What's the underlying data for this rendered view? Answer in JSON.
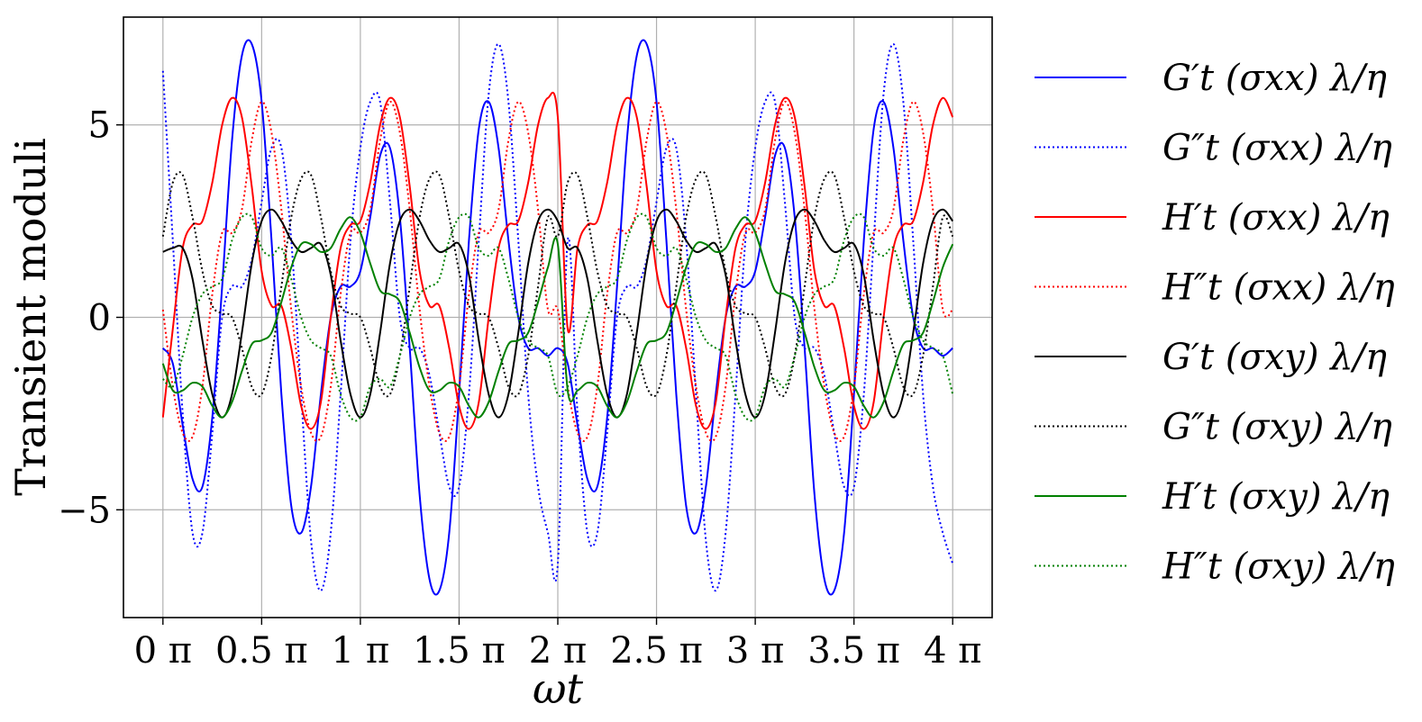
{
  "chart_data": {
    "type": "line",
    "xlabel": "ωt",
    "ylabel": "Transient moduli",
    "xlim": [
      0,
      4
    ],
    "ylim": [
      -7.8,
      7.8
    ],
    "x_unit": "π",
    "x_ticks": [
      0,
      0.5,
      1,
      1.5,
      2,
      2.5,
      3,
      3.5,
      4
    ],
    "x_tick_labels": [
      "0 π",
      "0.5 π",
      "1 π",
      "1.5 π",
      "2 π",
      "2.5 π",
      "3 π",
      "3.5 π",
      "4 π"
    ],
    "y_ticks": [
      -5,
      0,
      5
    ],
    "y_tick_labels": [
      "−5",
      "0",
      "5"
    ],
    "grid": true,
    "legend_position": "outside-right",
    "series": [
      {
        "name": "G′t (σxx) λ/η",
        "color": "#0000ff",
        "style": "solid",
        "x": [
          0,
          0.05,
          0.1,
          0.15,
          0.2,
          0.25,
          0.3,
          0.35,
          0.4,
          0.45,
          0.5,
          0.55,
          0.6,
          0.65,
          0.7,
          0.75,
          0.8,
          0.85,
          0.9,
          0.95,
          1.0,
          1.05,
          1.1,
          1.15,
          1.2,
          1.25,
          1.3,
          1.35,
          1.4,
          1.45,
          1.5,
          1.55,
          1.6,
          1.65,
          1.7,
          1.75,
          1.8,
          1.85,
          1.9,
          1.95,
          2.0
        ],
        "y": [
          -0.8,
          -1.2,
          -2.8,
          -4.2,
          -4.4,
          -2.6,
          0.8,
          4.6,
          6.8,
          7.1,
          5.6,
          2.0,
          -2.0,
          -4.9,
          -5.6,
          -4.4,
          -2.0,
          0.0,
          0.8,
          0.8,
          1.2,
          2.6,
          4.2,
          4.4,
          2.6,
          -0.8,
          -4.6,
          -6.8,
          -7.1,
          -5.6,
          -2.0,
          2.0,
          4.9,
          5.6,
          4.4,
          2.0,
          0.0,
          -0.8,
          -0.8,
          -1.0,
          -0.8
        ]
      },
      {
        "name": "G″t (σxx) λ/η",
        "color": "#0000ff",
        "style": "dotted",
        "x": [
          0,
          0.05,
          0.1,
          0.15,
          0.2,
          0.25,
          0.3,
          0.35,
          0.4,
          0.45,
          0.5,
          0.55,
          0.6,
          0.65,
          0.7,
          0.75,
          0.8,
          0.85,
          0.9,
          0.95,
          1.0,
          1.05,
          1.1,
          1.15,
          1.2,
          1.25,
          1.3,
          1.35,
          1.4,
          1.45,
          1.5,
          1.55,
          1.6,
          1.65,
          1.7,
          1.75,
          1.8,
          1.85,
          1.9,
          1.95,
          2.0
        ],
        "y": [
          6.4,
          2.0,
          -2.5,
          -5.6,
          -5.6,
          -3.0,
          0.0,
          0.8,
          0.8,
          1.5,
          3.0,
          4.4,
          4.4,
          2.0,
          -2.0,
          -5.8,
          -7.1,
          -5.6,
          -2.0,
          2.0,
          4.4,
          5.6,
          5.6,
          3.0,
          0.0,
          -0.8,
          -0.8,
          -1.5,
          -3.0,
          -4.4,
          -4.4,
          -2.0,
          2.0,
          5.8,
          7.1,
          5.6,
          2.0,
          -2.0,
          -4.4,
          -5.6,
          -6.4
        ]
      },
      {
        "name": "H′t (σxx) λ/η",
        "color": "#ff0000",
        "style": "solid",
        "x": [
          0,
          0.05,
          0.1,
          0.15,
          0.2,
          0.25,
          0.3,
          0.35,
          0.4,
          0.45,
          0.5,
          0.55,
          0.6,
          0.65,
          0.7,
          0.75,
          0.8,
          0.85,
          0.9,
          0.95,
          1.0,
          1.05,
          1.1,
          1.15,
          1.2,
          1.25,
          1.3,
          1.35,
          1.4,
          1.45,
          1.5,
          1.55,
          1.6,
          1.65,
          1.7,
          1.75,
          1.8,
          1.85,
          1.9,
          1.95,
          2.0
        ],
        "y": [
          -2.6,
          -0.3,
          1.8,
          2.4,
          2.5,
          3.5,
          5.0,
          5.7,
          5.2,
          3.4,
          1.2,
          0.3,
          0.3,
          -0.8,
          -2.3,
          -2.9,
          -2.2,
          0.0,
          1.8,
          2.4,
          2.5,
          3.5,
          5.0,
          5.7,
          5.2,
          3.4,
          1.2,
          0.3,
          0.3,
          -0.8,
          -2.3,
          -2.9,
          -2.2,
          0.0,
          1.8,
          2.4,
          2.5,
          3.5,
          5.0,
          5.7,
          5.2
        ]
      },
      {
        "name": "H″t (σxx) λ/η",
        "color": "#ff0000",
        "style": "dotted",
        "x": [
          0,
          0.05,
          0.1,
          0.15,
          0.2,
          0.25,
          0.3,
          0.35,
          0.4,
          0.45,
          0.5,
          0.55,
          0.6,
          0.65,
          0.7,
          0.75,
          0.8,
          0.85,
          0.9,
          0.95,
          1.0,
          1.05,
          1.1,
          1.15,
          1.2,
          1.25,
          1.3,
          1.35,
          1.4,
          1.45,
          1.5,
          1.55,
          1.6,
          1.65,
          1.7,
          1.75,
          1.8,
          1.85,
          1.9,
          1.95,
          2.0
        ],
        "y": [
          0.2,
          -1.8,
          -3.0,
          -3.1,
          -1.8,
          0.6,
          2.2,
          2.2,
          2.8,
          4.6,
          5.6,
          4.8,
          2.8,
          0.2,
          -1.8,
          -3.0,
          -3.1,
          -1.8,
          0.6,
          2.2,
          2.2,
          2.8,
          4.6,
          5.6,
          4.8,
          2.8,
          0.2,
          -1.8,
          -3.0,
          -3.1,
          -1.8,
          0.6,
          2.2,
          2.2,
          2.8,
          4.6,
          5.6,
          4.8,
          2.8,
          0.2,
          0.2
        ]
      },
      {
        "name": "G′t (σxy) λ/η",
        "color": "#000000",
        "style": "solid",
        "x": [
          0,
          0.05,
          0.1,
          0.15,
          0.2,
          0.25,
          0.3,
          0.35,
          0.4,
          0.45,
          0.5,
          0.55,
          0.6,
          0.65,
          0.7,
          0.75,
          0.8,
          0.85,
          0.9,
          0.95,
          1.0,
          1.05,
          1.1,
          1.15,
          1.2,
          1.25,
          1.3,
          1.35,
          1.4,
          1.45,
          1.5,
          1.55,
          1.6,
          1.65,
          1.7,
          1.75,
          1.8,
          1.85,
          1.9,
          1.95,
          2.0
        ],
        "y": [
          1.7,
          1.8,
          1.8,
          1.0,
          -0.6,
          -2.0,
          -2.6,
          -2.0,
          -0.4,
          1.4,
          2.5,
          2.8,
          2.5,
          2.0,
          1.7,
          1.8,
          1.9,
          1.1,
          -0.6,
          -2.0,
          -2.6,
          -2.0,
          -0.4,
          1.4,
          2.5,
          2.8,
          2.5,
          2.0,
          1.7,
          1.8,
          1.9,
          1.1,
          -0.6,
          -2.0,
          -2.6,
          -2.0,
          -0.4,
          1.4,
          2.5,
          2.8,
          2.5
        ]
      },
      {
        "name": "G″t (σxy) λ/η",
        "color": "#000000",
        "style": "dotted",
        "x": [
          0,
          0.05,
          0.1,
          0.15,
          0.2,
          0.25,
          0.3,
          0.35,
          0.4,
          0.45,
          0.5,
          0.55,
          0.6,
          0.65,
          0.7,
          0.75,
          0.8,
          0.85,
          0.9,
          0.95,
          1.0,
          1.05,
          1.1,
          1.15,
          1.2,
          1.25,
          1.3,
          1.35,
          1.4,
          1.45,
          1.5,
          1.55,
          1.6,
          1.65,
          1.7,
          1.75,
          1.8,
          1.85,
          1.9,
          1.95,
          2.0
        ],
        "y": [
          2.1,
          3.5,
          3.7,
          2.6,
          1.2,
          0.3,
          0.1,
          0.0,
          -0.8,
          -1.8,
          -2.0,
          -1.0,
          0.8,
          2.6,
          3.6,
          3.7,
          2.6,
          1.2,
          0.3,
          0.1,
          0.0,
          -0.8,
          -1.8,
          -2.0,
          -1.0,
          0.8,
          2.6,
          3.6,
          3.7,
          2.6,
          1.2,
          0.3,
          0.1,
          0.0,
          -0.8,
          -1.8,
          -2.0,
          -1.0,
          0.8,
          2.6,
          2.1
        ]
      },
      {
        "name": "H′t (σxy) λ/η",
        "color": "#008000",
        "style": "solid",
        "x": [
          0,
          0.05,
          0.1,
          0.15,
          0.2,
          0.25,
          0.3,
          0.35,
          0.4,
          0.45,
          0.5,
          0.55,
          0.6,
          0.65,
          0.7,
          0.75,
          0.8,
          0.85,
          0.9,
          0.95,
          1.0,
          1.05,
          1.1,
          1.15,
          1.2,
          1.25,
          1.3,
          1.35,
          1.4,
          1.45,
          1.5,
          1.55,
          1.6,
          1.65,
          1.7,
          1.75,
          1.8,
          1.85,
          1.9,
          1.95,
          2.0
        ],
        "y": [
          -1.2,
          -1.9,
          -1.9,
          -1.7,
          -1.8,
          -2.3,
          -2.6,
          -2.2,
          -1.4,
          -0.7,
          -0.6,
          -0.4,
          0.4,
          1.3,
          1.9,
          1.9,
          1.7,
          1.8,
          2.3,
          2.6,
          2.2,
          1.4,
          0.7,
          0.6,
          0.4,
          -0.4,
          -1.3,
          -1.9,
          -1.9,
          -1.7,
          -1.8,
          -2.3,
          -2.6,
          -2.2,
          -1.4,
          -0.7,
          -0.6,
          -0.4,
          0.4,
          1.3,
          1.9
        ]
      },
      {
        "name": "H″t (σxy) λ/η",
        "color": "#008000",
        "style": "dotted",
        "x": [
          0,
          0.05,
          0.1,
          0.15,
          0.2,
          0.25,
          0.3,
          0.35,
          0.4,
          0.45,
          0.5,
          0.55,
          0.6,
          0.65,
          0.7,
          0.75,
          0.8,
          0.85,
          0.9,
          0.95,
          1.0,
          1.05,
          1.1,
          1.15,
          1.2,
          1.25,
          1.3,
          1.35,
          1.4,
          1.45,
          1.5,
          1.55,
          1.6,
          1.65,
          1.7,
          1.75,
          1.8,
          1.85,
          1.9,
          1.95,
          2.0
        ],
        "y": [
          -1.6,
          -1.8,
          -1.0,
          0.0,
          0.6,
          0.8,
          1.0,
          2.0,
          2.6,
          2.6,
          1.8,
          1.6,
          1.8,
          1.0,
          0.0,
          -0.6,
          -0.8,
          -1.0,
          -2.0,
          -2.6,
          -2.6,
          -1.8,
          -1.6,
          -1.8,
          -1.0,
          0.0,
          0.6,
          0.8,
          1.0,
          2.0,
          2.6,
          2.6,
          1.8,
          1.6,
          1.8,
          1.0,
          0.0,
          -0.6,
          -0.8,
          -1.0,
          -2.0
        ]
      }
    ]
  }
}
